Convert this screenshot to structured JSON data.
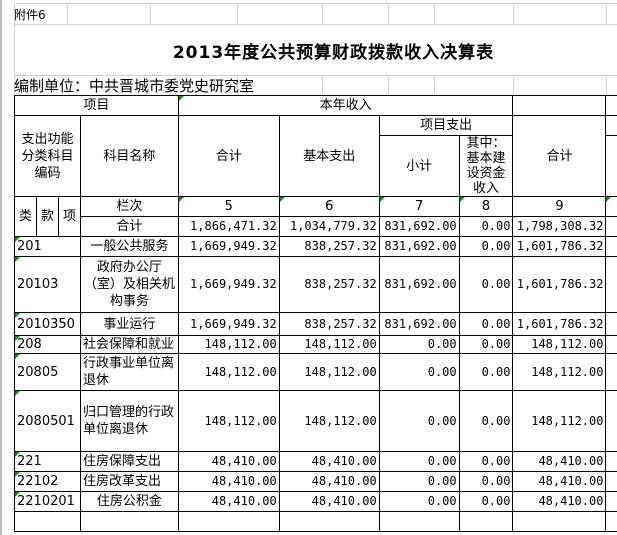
{
  "attachment": "附件6",
  "title": "2013年度公共预算财政拨款收入决算表",
  "unit": "编制单位：中共晋城市委党史研究室",
  "header": {
    "item": "项目",
    "this_year_income": "本年收入",
    "code": "支出功能分类科目编码",
    "name": "科目名称",
    "total": "合计",
    "basic": "基本支出",
    "project": "项目支出",
    "subtotal": "小计",
    "capital": "其中：基本建设资金收入",
    "total9": "合计",
    "lei": "类",
    "kuan": "款",
    "xiang": "项",
    "column_no": "栏次",
    "c5": "5",
    "c6": "6",
    "c7": "7",
    "c8": "8",
    "c9": "9"
  },
  "total_row": {
    "label": "合计",
    "c5": "1,866,471.32",
    "c6": "1,034,779.32",
    "c7": "831,692.00",
    "c8": "0.00",
    "c9": "1,798,308.32"
  },
  "rows": [
    {
      "code": "201",
      "name": "一般公共服务",
      "c5": "1,669,949.32",
      "c6": "838,257.32",
      "c7": "831,692.00",
      "c8": "0.00",
      "c9": "1,601,786.32"
    },
    {
      "code": "20103",
      "name": "政府办公厅（室）及相关机构事务",
      "c5": "1,669,949.32",
      "c6": "838,257.32",
      "c7": "831,692.00",
      "c8": "0.00",
      "c9": "1,601,786.32"
    },
    {
      "code": "2010350",
      "name": "事业运行",
      "c5": "1,669,949.32",
      "c6": "838,257.32",
      "c7": "831,692.00",
      "c8": "0.00",
      "c9": "1,601,786.32"
    },
    {
      "code": "208",
      "name": "社会保障和就业",
      "c5": "148,112.00",
      "c6": "148,112.00",
      "c7": "0.00",
      "c8": "0.00",
      "c9": "148,112.00"
    },
    {
      "code": "20805",
      "name": "行政事业单位离退休",
      "c5": "148,112.00",
      "c6": "148,112.00",
      "c7": "0.00",
      "c8": "0.00",
      "c9": "148,112.00"
    },
    {
      "code": "2080501",
      "name": "归口管理的行政单位离退休",
      "c5": "148,112.00",
      "c6": "148,112.00",
      "c7": "0.00",
      "c8": "0.00",
      "c9": "148,112.00"
    },
    {
      "code": "221",
      "name": "住房保障支出",
      "c5": "48,410.00",
      "c6": "48,410.00",
      "c7": "0.00",
      "c8": "0.00",
      "c9": "48,410.00"
    },
    {
      "code": "22102",
      "name": "住房改革支出",
      "c5": "48,410.00",
      "c6": "48,410.00",
      "c7": "0.00",
      "c8": "0.00",
      "c9": "48,410.00"
    },
    {
      "code": "2210201",
      "name": "住房公积金",
      "c5": "48,410.00",
      "c6": "48,410.00",
      "c7": "0.00",
      "c8": "0.00",
      "c9": "48,410.00"
    }
  ]
}
